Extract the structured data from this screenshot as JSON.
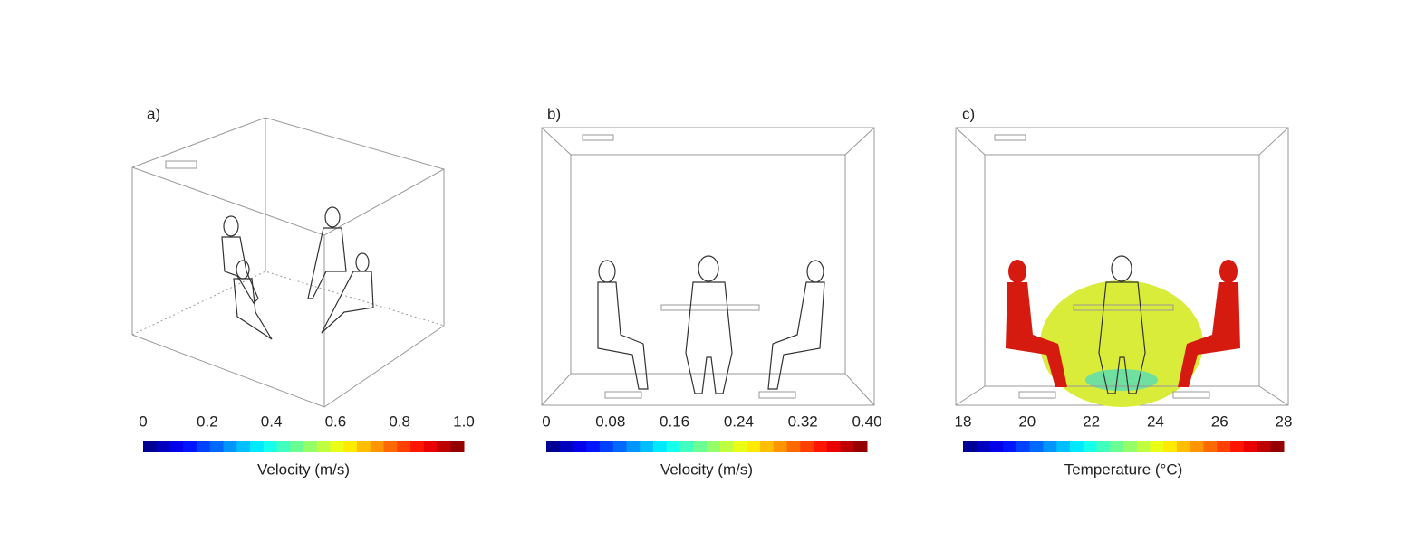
{
  "panels": [
    {
      "label": "a)",
      "colorbar": {
        "title": "Velocity (m/s)",
        "range": [
          0,
          1
        ],
        "ticks": [
          0,
          0.2,
          0.4,
          0.6,
          0.8,
          {
            "value": 1,
            "label": "1.0"
          }
        ]
      }
    },
    {
      "label": "b)",
      "colorbar": {
        "title": "Velocity (m/s)",
        "range": [
          0,
          0.4
        ],
        "ticks": [
          0,
          0.08,
          0.16,
          0.24,
          0.32,
          {
            "value": 0.4,
            "label": "0.40"
          }
        ]
      }
    },
    {
      "label": "c)",
      "colorbar": {
        "title": "Temperature (°C)",
        "range": [
          18,
          28
        ],
        "ticks": [
          18,
          20,
          22,
          24,
          26,
          28
        ]
      }
    }
  ]
}
